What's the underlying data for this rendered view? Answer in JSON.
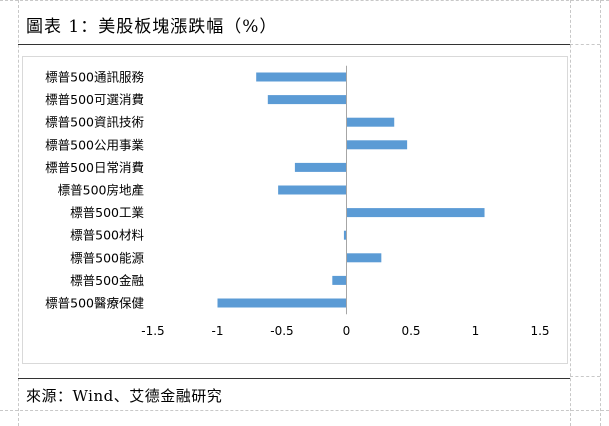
{
  "header": {
    "title": "圖表 1：美股板塊漲跌幅（%）"
  },
  "footer": {
    "source": "來源：Wind、艾德金融研究"
  },
  "colors": {
    "bar": "#5b9bd5",
    "axis": "#a6a6a6"
  },
  "chart_data": {
    "type": "bar",
    "orientation": "horizontal",
    "title": "",
    "xlabel": "",
    "ylabel": "",
    "categories": [
      "標普500通訊服務",
      "標普500可選消費",
      "標普500資訊技術",
      "標普500公用事業",
      "標普500日常消費",
      "標普500房地產",
      "標普500工業",
      "標普500材料",
      "標普500能源",
      "標普500金融",
      "標普500醫療保健"
    ],
    "values": [
      -0.7,
      -0.61,
      0.37,
      0.47,
      -0.4,
      -0.53,
      1.07,
      -0.02,
      0.27,
      -0.11,
      -1.0
    ],
    "xlim": [
      -1.5,
      1.5
    ],
    "xticks": [
      "-1.5",
      "-1",
      "-0.5",
      "0",
      "0.5",
      "1",
      "1.5"
    ],
    "xtick_values": [
      -1.5,
      -1,
      -0.5,
      0,
      0.5,
      1,
      1.5
    ],
    "grid": false,
    "legend": "none"
  }
}
